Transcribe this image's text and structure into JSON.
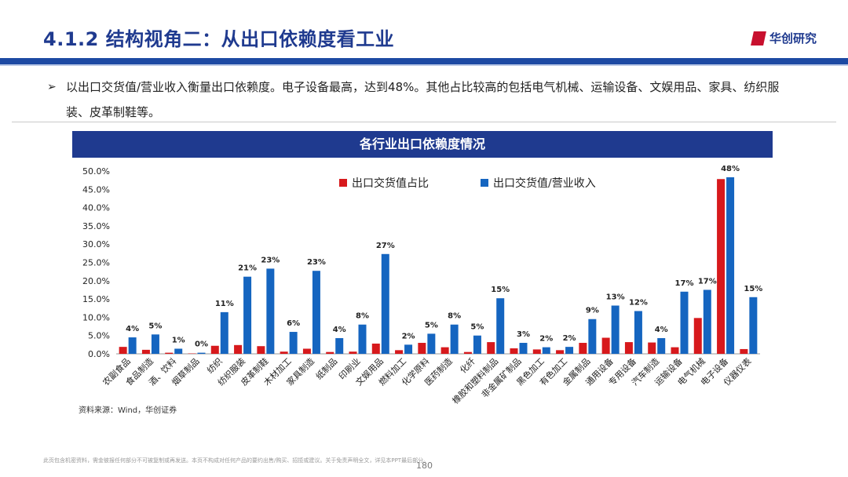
{
  "header": {
    "title": "4.1.2 结构视角二：从出口依赖度看工业",
    "logo_text": "华创研究"
  },
  "bullet": {
    "arrow": "➢",
    "text": "以出口交货值/营业收入衡量出口依赖度。电子设备最高，达到48%。其他占比较高的包括电气机械、运输设备、文娱用品、家具、纺织服装、皮革制鞋等。"
  },
  "chart_banner": "各行业出口依赖度情况",
  "chart_data": {
    "type": "bar",
    "title": "各行业出口依赖度情况",
    "categories": [
      "农副食品",
      "食品制造",
      "酒、饮料",
      "烟草制品",
      "纺织",
      "纺织服装",
      "皮革制鞋",
      "木材加工",
      "家具制造",
      "纸制品",
      "印刷业",
      "文娱用品",
      "燃料加工",
      "化学原料",
      "医药制造",
      "化纤",
      "橡胶和塑料制品",
      "非金属矿制品",
      "黑色加工",
      "有色加工",
      "金属制品",
      "通用设备",
      "专用设备",
      "汽车制造",
      "运输设备",
      "电气机械",
      "电子设备",
      "仪器仪表"
    ],
    "series": [
      {
        "name": "出口交货值占比",
        "color": "#d7191c",
        "values": [
          1.9,
          1.1,
          0.3,
          0.1,
          2.2,
          2.4,
          2.1,
          0.6,
          1.4,
          0.5,
          0.6,
          2.8,
          1.0,
          3.0,
          1.8,
          0.5,
          3.2,
          1.5,
          1.2,
          1.0,
          3.0,
          4.4,
          3.2,
          3.1,
          1.8,
          9.8,
          47.8,
          1.3
        ]
      },
      {
        "name": "出口交货值/营业收入",
        "color": "#1565c0",
        "values": [
          4.5,
          5.3,
          1.4,
          0.3,
          11.4,
          21.1,
          23.3,
          6.0,
          22.7,
          4.3,
          8.0,
          27.3,
          2.5,
          5.5,
          8.0,
          5.0,
          15.2,
          3.0,
          1.8,
          1.9,
          9.5,
          13.2,
          11.7,
          4.3,
          17.0,
          17.5,
          48.3,
          15.5
        ]
      }
    ],
    "data_labels": [
      "4%",
      "5%",
      "1%",
      "0%",
      "11%",
      "21%",
      "23%",
      "6%",
      "23%",
      "4%",
      "8%",
      "27%",
      "2%",
      "5%",
      "8%",
      "5%",
      "15%",
      "3%",
      "2%",
      "2%",
      "9%",
      "13%",
      "12%",
      "4%",
      "17%",
      "17%",
      "48%",
      "15%"
    ],
    "y_ticks": [
      "0.0%",
      "5.0%",
      "10.0%",
      "15.0%",
      "20.0%",
      "25.0%",
      "30.0%",
      "35.0%",
      "40.0%",
      "45.0%",
      "50.0%"
    ],
    "ylim": [
      0,
      50
    ],
    "legend_position": "top-center"
  },
  "source": "资料来源：Wind，华创证券",
  "footer": {
    "disclaimer": "此页包含机密资料，需金彼报任何部分不可被复制或再发送。本页不构成对任何产品的要约出售/购买、招揽或建议。关于免责声明全文，详见本PPT最后部分。",
    "page_number": "180"
  },
  "colors": {
    "primary": "#1f3a8f",
    "accent_red": "#d7191c",
    "bar_blue": "#1565c0"
  }
}
